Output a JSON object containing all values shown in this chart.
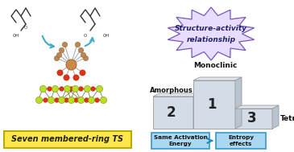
{
  "left_label": "Seven membered-ring TS",
  "left_label_bg": "#FFE84D",
  "left_label_border": "#BBAA00",
  "burst_bg": "#E8DDFF",
  "burst_border": "#7755BB",
  "burst_text_line1": "Structure-activity",
  "burst_text_line2": "relationship",
  "burst_text_color": "#222266",
  "podium_face_color": "#D4DCE8",
  "podium_top_color": "#E0E6F0",
  "podium_side_color": "#B8C4D0",
  "podium_edge_color": "#999999",
  "podium_num_color": "#222222",
  "podium_label_color": "#111111",
  "box_bg": "#AAD8F0",
  "box_border": "#3399CC",
  "box_text_color": "#111111",
  "box1_text": "Same Activation\nEnergy",
  "box2_text": "Entropy\neffects",
  "arrow_color": "#2288BB",
  "cyan_arrow_color": "#44AACC",
  "bg_color": "#FFFFFF",
  "fig_w": 3.65,
  "fig_h": 1.89,
  "dpi": 100
}
